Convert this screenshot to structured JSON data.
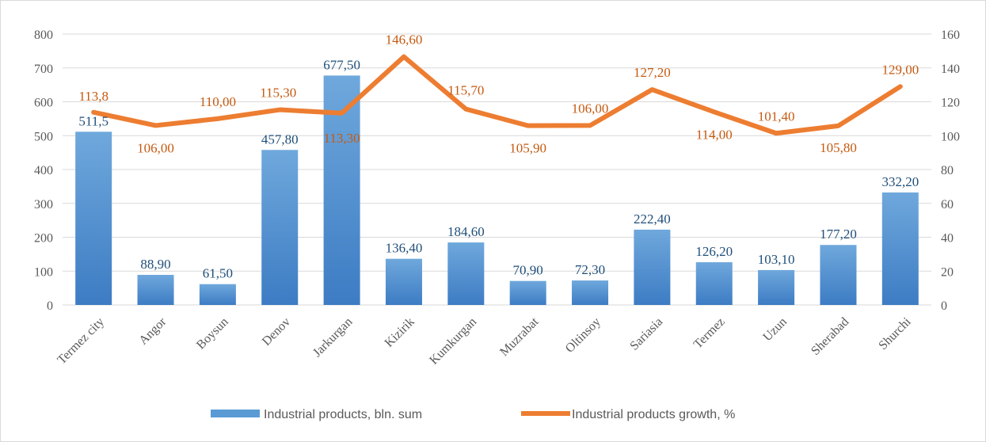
{
  "chart_data": {
    "type": "bar",
    "categories": [
      "Termez city",
      "Angor",
      "Boysun",
      "Denov",
      "Jarkurgan",
      "Kizirik",
      "Kumkurgan",
      "Muzrabat",
      "Oltinsoy",
      "Sariasia",
      "Termez",
      "Uzun",
      "Sherabad",
      "Shurchi"
    ],
    "series": [
      {
        "name": "Industrial products, bln. sum",
        "type": "bar",
        "axis": "left",
        "color": "#5b9bd5",
        "values": [
          511.5,
          88.9,
          61.5,
          457.8,
          677.5,
          136.4,
          184.6,
          70.9,
          72.3,
          222.4,
          126.2,
          103.1,
          177.2,
          332.2
        ],
        "labels": [
          "511,5",
          "88,90",
          "61,50",
          "457,80",
          "677,50",
          "136,40",
          "184,60",
          "70,90",
          "72,30",
          "222,40",
          "126,20",
          "103,10",
          "177,20",
          "332,20"
        ]
      },
      {
        "name": "Industrial products growth, %",
        "type": "line",
        "axis": "right",
        "color": "#ed7d31",
        "values": [
          113.8,
          106.0,
          110.0,
          115.3,
          113.3,
          146.6,
          115.7,
          105.9,
          106.0,
          127.2,
          114.0,
          101.4,
          105.8,
          129.0
        ],
        "labels": [
          "113,8",
          "106,00",
          "110,00",
          "115,30",
          "113,30",
          "146,60",
          "115,70",
          "105,90",
          "106,00",
          "127,20",
          "114,00",
          "101,40",
          "105,80",
          "129,00"
        ]
      }
    ],
    "y_left": {
      "min": 0,
      "max": 800,
      "step": 100,
      "ticks": [
        "0",
        "100",
        "200",
        "300",
        "400",
        "500",
        "600",
        "700",
        "800"
      ]
    },
    "y_right": {
      "min": 0,
      "max": 160,
      "step": 20,
      "ticks": [
        "0",
        "20",
        "40",
        "60",
        "80",
        "100",
        "120",
        "140",
        "160"
      ]
    },
    "grid": true,
    "legend_position": "bottom"
  }
}
